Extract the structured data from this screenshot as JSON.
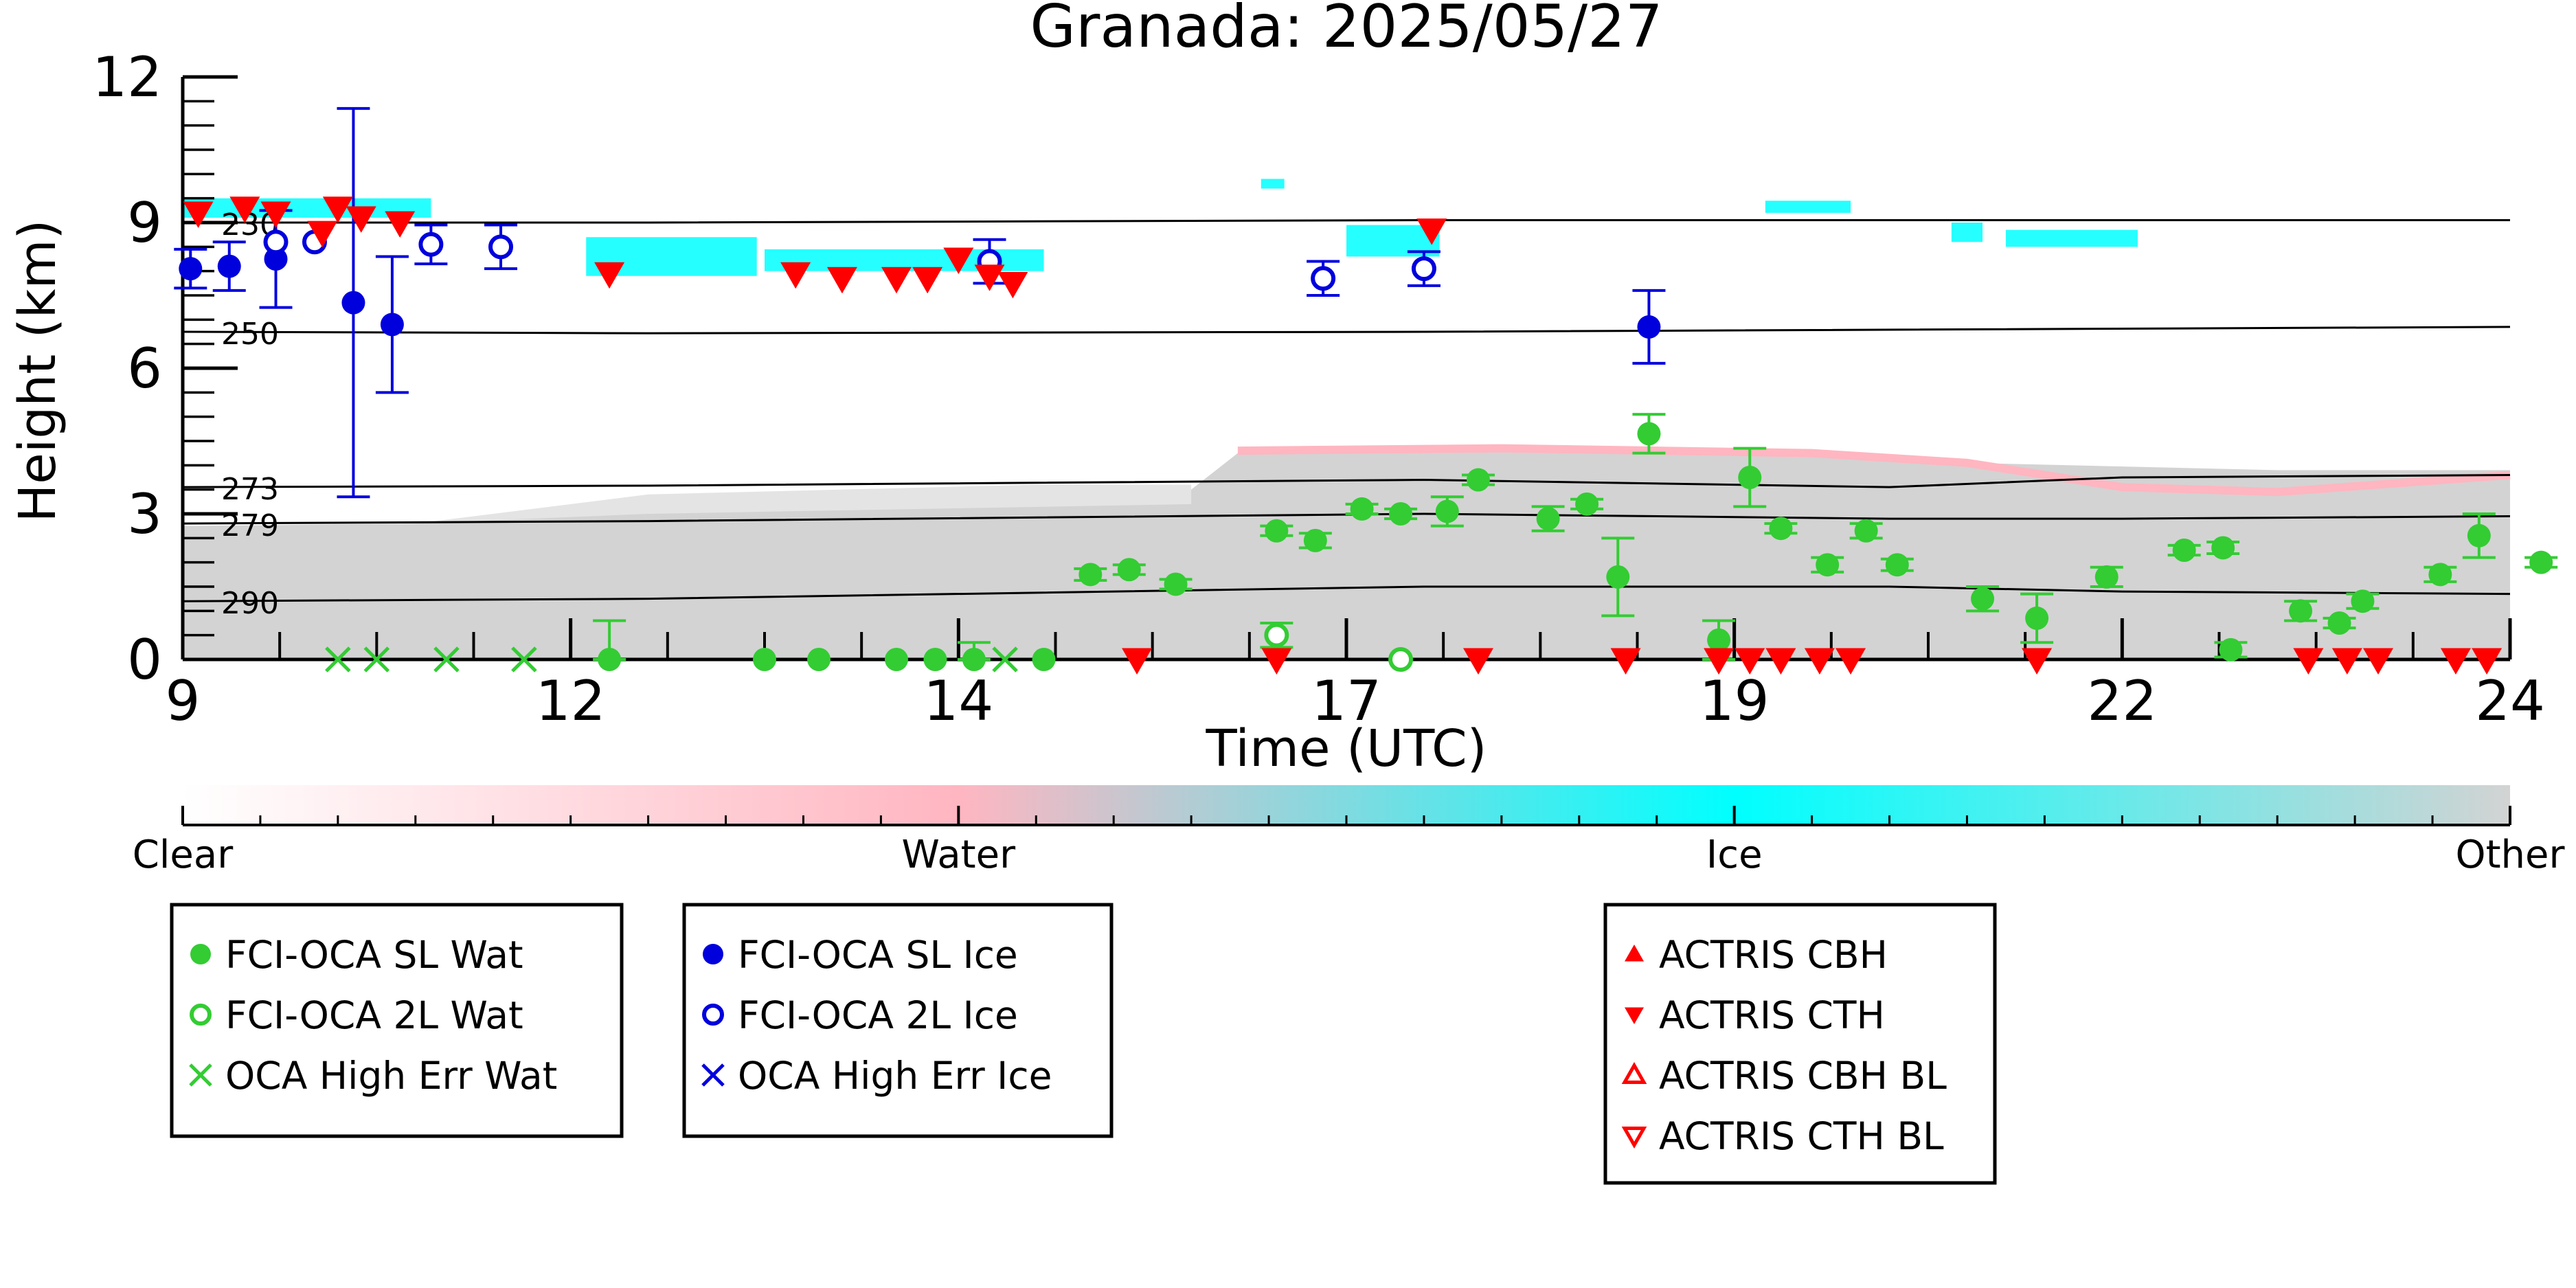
{
  "chart_data": {
    "type": "scatter",
    "title": "Granada: 2025/05/27",
    "xlabel": "Time (UTC)",
    "ylabel": "Height (km)",
    "xlim": [
      9,
      24
    ],
    "ylim": [
      0,
      12
    ],
    "x_ticks": [
      "9",
      "12",
      "14",
      "17",
      "19",
      "22",
      "24"
    ],
    "x_tick_values": [
      9,
      11.5,
      14,
      16.5,
      19,
      21.5,
      24
    ],
    "y_ticks": [
      "0",
      "3",
      "6",
      "9",
      "12"
    ],
    "y_tick_values": [
      0,
      3,
      6,
      9,
      12
    ],
    "isotherms": [
      {
        "label": "230",
        "points": [
          [
            9,
            9.0
          ],
          [
            12,
            9.0
          ],
          [
            17,
            9.05
          ],
          [
            24,
            9.05
          ]
        ]
      },
      {
        "label": "250",
        "points": [
          [
            9,
            6.75
          ],
          [
            12,
            6.72
          ],
          [
            17,
            6.75
          ],
          [
            24,
            6.85
          ]
        ]
      },
      {
        "label": "273",
        "points": [
          [
            9,
            3.55
          ],
          [
            12,
            3.58
          ],
          [
            17,
            3.7
          ],
          [
            20,
            3.55
          ],
          [
            21.5,
            3.75
          ],
          [
            24,
            3.8
          ]
        ]
      },
      {
        "label": "279",
        "points": [
          [
            9,
            2.8
          ],
          [
            12,
            2.85
          ],
          [
            17,
            3.0
          ],
          [
            20,
            2.9
          ],
          [
            21.5,
            2.9
          ],
          [
            24,
            2.95
          ]
        ]
      },
      {
        "label": "290",
        "points": [
          [
            9,
            1.2
          ],
          [
            12,
            1.25
          ],
          [
            17,
            1.5
          ],
          [
            20,
            1.5
          ],
          [
            21.5,
            1.4
          ],
          [
            24,
            1.35
          ]
        ]
      }
    ],
    "colorbar": {
      "labels": [
        "Clear",
        "Water",
        "Ice",
        "Other"
      ],
      "colors": [
        "#ffffff",
        "#ffb6c1",
        "#00ffff",
        "#d3d3d3"
      ]
    },
    "series": [
      {
        "name": "FCI-OCA SL Wat",
        "marker": "filled-circle",
        "color": "#33cc33",
        "points": [
          {
            "x": 11.75,
            "y": 0.0,
            "err": 0.8
          },
          {
            "x": 12.75,
            "y": 0.0
          },
          {
            "x": 13.1,
            "y": 0.0
          },
          {
            "x": 13.6,
            "y": 0.0
          },
          {
            "x": 13.85,
            "y": 0.0
          },
          {
            "x": 14.1,
            "y": 0.0,
            "err": 0.35
          },
          {
            "x": 14.55,
            "y": 0.0
          },
          {
            "x": 14.85,
            "y": 1.75,
            "err": 0.12
          },
          {
            "x": 15.1,
            "y": 1.85,
            "err": 0.1
          },
          {
            "x": 15.4,
            "y": 1.55,
            "err": 0.1
          },
          {
            "x": 16.05,
            "y": 2.65,
            "err": 0.1
          },
          {
            "x": 16.3,
            "y": 2.45,
            "err": 0.15
          },
          {
            "x": 16.6,
            "y": 3.1,
            "err": 0.1
          },
          {
            "x": 16.85,
            "y": 3.0,
            "err": 0.1
          },
          {
            "x": 17.15,
            "y": 3.05,
            "err": 0.3
          },
          {
            "x": 17.35,
            "y": 3.7,
            "err": 0.1
          },
          {
            "x": 17.8,
            "y": 2.9,
            "err": 0.25
          },
          {
            "x": 18.05,
            "y": 3.2,
            "err": 0.1
          },
          {
            "x": 18.25,
            "y": 1.7,
            "err": 0.8
          },
          {
            "x": 18.45,
            "y": 4.65,
            "err": 0.4
          },
          {
            "x": 18.9,
            "y": 0.4,
            "err": 0.4
          },
          {
            "x": 19.1,
            "y": 3.75,
            "err": 0.6
          },
          {
            "x": 19.3,
            "y": 2.7,
            "err": 0.1
          },
          {
            "x": 19.6,
            "y": 1.95,
            "err": 0.15
          },
          {
            "x": 19.85,
            "y": 2.65,
            "err": 0.15
          },
          {
            "x": 20.05,
            "y": 1.95,
            "err": 0.12
          },
          {
            "x": 20.6,
            "y": 1.25,
            "err": 0.25
          },
          {
            "x": 20.95,
            "y": 0.85,
            "err": 0.5
          },
          {
            "x": 21.4,
            "y": 1.7,
            "err": 0.2
          },
          {
            "x": 21.9,
            "y": 2.25,
            "err": 0.1
          },
          {
            "x": 22.15,
            "y": 2.3,
            "err": 0.12
          },
          {
            "x": 22.2,
            "y": 0.2,
            "err": 0.15
          },
          {
            "x": 22.65,
            "y": 1.0,
            "err": 0.2
          },
          {
            "x": 22.9,
            "y": 0.75,
            "err": 0.1
          },
          {
            "x": 23.05,
            "y": 1.2,
            "err": 0.15
          },
          {
            "x": 23.55,
            "y": 1.75,
            "err": 0.15
          },
          {
            "x": 23.8,
            "y": 2.55,
            "err": 0.45
          },
          {
            "x": 24.2,
            "y": 2.0,
            "err": 0.1
          }
        ]
      },
      {
        "name": "FCI-OCA 2L Wat",
        "marker": "open-circle",
        "color": "#33cc33",
        "points": [
          {
            "x": 16.05,
            "y": 0.5,
            "err": 0.25
          },
          {
            "x": 16.85,
            "y": 0.0
          }
        ]
      },
      {
        "name": "OCA High Err Wat",
        "marker": "x",
        "color": "#33cc33",
        "points": [
          {
            "x": 10.0,
            "y": 0.0
          },
          {
            "x": 10.25,
            "y": 0.0
          },
          {
            "x": 10.7,
            "y": 0.0
          },
          {
            "x": 11.2,
            "y": 0.0
          },
          {
            "x": 14.3,
            "y": 0.0
          }
        ]
      },
      {
        "name": "FCI-OCA SL Ice",
        "marker": "filled-circle",
        "color": "#0000dd",
        "points": [
          {
            "x": 9.05,
            "y": 8.05,
            "err": 0.4
          },
          {
            "x": 9.3,
            "y": 8.1,
            "err": 0.5
          },
          {
            "x": 9.6,
            "y": 8.25,
            "err": 1.0
          },
          {
            "x": 10.1,
            "y": 7.35,
            "err": 4.0
          },
          {
            "x": 10.35,
            "y": 6.9,
            "err": 1.4
          },
          {
            "x": 18.45,
            "y": 6.85,
            "err": 0.75
          }
        ]
      },
      {
        "name": "FCI-OCA 2L Ice",
        "marker": "open-circle",
        "color": "#0000dd",
        "points": [
          {
            "x": 9.6,
            "y": 8.6
          },
          {
            "x": 9.85,
            "y": 8.6
          },
          {
            "x": 10.6,
            "y": 8.55,
            "err": 0.4
          },
          {
            "x": 11.05,
            "y": 8.5,
            "err": 0.45
          },
          {
            "x": 14.2,
            "y": 8.2,
            "err": 0.45
          },
          {
            "x": 16.35,
            "y": 7.85,
            "err": 0.35
          },
          {
            "x": 17.0,
            "y": 8.05,
            "err": 0.35
          }
        ]
      },
      {
        "name": "OCA High Err Ice",
        "marker": "x",
        "color": "#0000dd",
        "points": []
      },
      {
        "name": "ACTRIS CBH",
        "marker": "triangle-up",
        "color": "#ff0000",
        "points": []
      },
      {
        "name": "ACTRIS CTH",
        "marker": "triangle-down",
        "color": "#ff0000",
        "points": [
          {
            "x": 9.1,
            "y": 9.2
          },
          {
            "x": 9.4,
            "y": 9.3
          },
          {
            "x": 9.6,
            "y": 9.2
          },
          {
            "x": 9.9,
            "y": 8.8
          },
          {
            "x": 10.0,
            "y": 9.3
          },
          {
            "x": 10.15,
            "y": 9.1
          },
          {
            "x": 10.4,
            "y": 9.0
          },
          {
            "x": 11.75,
            "y": 7.95
          },
          {
            "x": 12.95,
            "y": 7.95
          },
          {
            "x": 13.25,
            "y": 7.85
          },
          {
            "x": 13.6,
            "y": 7.85
          },
          {
            "x": 13.8,
            "y": 7.85
          },
          {
            "x": 14.0,
            "y": 8.25
          },
          {
            "x": 14.2,
            "y": 7.9
          },
          {
            "x": 14.35,
            "y": 7.75
          },
          {
            "x": 17.05,
            "y": 8.85
          },
          {
            "x": 15.15,
            "y": 0.0
          },
          {
            "x": 16.05,
            "y": 0.0
          },
          {
            "x": 17.35,
            "y": 0.0
          },
          {
            "x": 18.3,
            "y": 0.0
          },
          {
            "x": 18.9,
            "y": 0.0
          },
          {
            "x": 19.1,
            "y": 0.0
          },
          {
            "x": 19.3,
            "y": 0.0
          },
          {
            "x": 19.55,
            "y": 0.0
          },
          {
            "x": 19.75,
            "y": 0.0
          },
          {
            "x": 20.95,
            "y": 0.0
          },
          {
            "x": 22.7,
            "y": 0.0
          },
          {
            "x": 22.95,
            "y": 0.0
          },
          {
            "x": 23.15,
            "y": 0.0
          },
          {
            "x": 23.65,
            "y": 0.0
          },
          {
            "x": 23.85,
            "y": 0.0
          }
        ]
      },
      {
        "name": "ACTRIS CBH BL",
        "marker": "open-triangle-up",
        "color": "#ff0000",
        "points": []
      },
      {
        "name": "ACTRIS CTH BL",
        "marker": "open-triangle-down",
        "color": "#ff0000",
        "points": []
      }
    ],
    "legends": [
      [
        "FCI-OCA SL Wat",
        "FCI-OCA 2L Wat",
        "OCA High Err Wat"
      ],
      [
        "FCI-OCA SL Ice",
        "FCI-OCA 2L Ice",
        "OCA High Err Ice"
      ],
      [
        "ACTRIS CBH",
        "ACTRIS CTH",
        "ACTRIS CBH BL",
        "ACTRIS CTH BL"
      ]
    ]
  }
}
